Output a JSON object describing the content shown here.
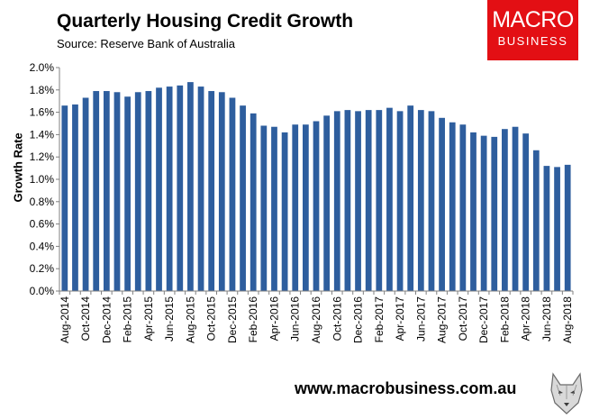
{
  "header": {
    "title": "Quarterly Housing Credit Growth",
    "subtitle": "Source: Reserve Bank of Australia"
  },
  "logo": {
    "line1": "MACRO",
    "line2": "BUSINESS",
    "color": "#e30f14"
  },
  "footer": {
    "website": "www.macrobusiness.com.au",
    "icon": "wolf-head-icon"
  },
  "chart_data": {
    "type": "bar",
    "ylabel": "Growth Rate",
    "ylim": [
      0,
      2.0
    ],
    "yticks": [
      "0.0%",
      "0.2%",
      "0.4%",
      "0.6%",
      "0.8%",
      "1.0%",
      "1.2%",
      "1.4%",
      "1.6%",
      "1.8%",
      "2.0%"
    ],
    "grid": false,
    "legend": "none",
    "bar_color": "#2e5e9e",
    "categories": [
      "Aug-2014",
      "Sep-2014",
      "Oct-2014",
      "Nov-2014",
      "Dec-2014",
      "Jan-2015",
      "Feb-2015",
      "Mar-2015",
      "Apr-2015",
      "May-2015",
      "Jun-2015",
      "Jul-2015",
      "Aug-2015",
      "Sep-2015",
      "Oct-2015",
      "Nov-2015",
      "Dec-2015",
      "Jan-2016",
      "Feb-2016",
      "Mar-2016",
      "Apr-2016",
      "May-2016",
      "Jun-2016",
      "Jul-2016",
      "Aug-2016",
      "Sep-2016",
      "Oct-2016",
      "Nov-2016",
      "Dec-2016",
      "Jan-2017",
      "Feb-2017",
      "Mar-2017",
      "Apr-2017",
      "May-2017",
      "Jun-2017",
      "Jul-2017",
      "Aug-2017",
      "Sep-2017",
      "Oct-2017",
      "Nov-2017",
      "Dec-2017",
      "Jan-2018",
      "Feb-2018",
      "Mar-2018",
      "Apr-2018",
      "May-2018",
      "Jun-2018",
      "Jul-2018",
      "Aug-2018"
    ],
    "xtick_labels": [
      "Aug-2014",
      "Oct-2014",
      "Dec-2014",
      "Feb-2015",
      "Apr-2015",
      "Jun-2015",
      "Aug-2015",
      "Oct-2015",
      "Dec-2015",
      "Feb-2016",
      "Apr-2016",
      "Jun-2016",
      "Aug-2016",
      "Oct-2016",
      "Dec-2016",
      "Feb-2017",
      "Apr-2017",
      "Jun-2017",
      "Aug-2017",
      "Oct-2017",
      "Dec-2017",
      "Feb-2018",
      "Apr-2018",
      "Jun-2018",
      "Aug-2018"
    ],
    "values": [
      1.66,
      1.67,
      1.73,
      1.79,
      1.79,
      1.78,
      1.74,
      1.78,
      1.79,
      1.82,
      1.83,
      1.84,
      1.87,
      1.83,
      1.79,
      1.78,
      1.73,
      1.66,
      1.59,
      1.48,
      1.47,
      1.42,
      1.49,
      1.49,
      1.52,
      1.57,
      1.61,
      1.62,
      1.61,
      1.62,
      1.62,
      1.64,
      1.61,
      1.66,
      1.62,
      1.61,
      1.55,
      1.51,
      1.49,
      1.42,
      1.39,
      1.38,
      1.45,
      1.47,
      1.41,
      1.26,
      1.12,
      1.11,
      1.13
    ]
  }
}
